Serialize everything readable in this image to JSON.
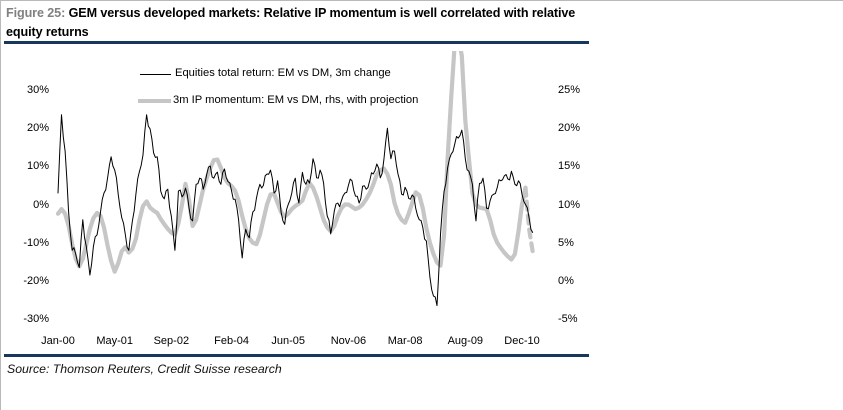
{
  "figure": {
    "label": "Figure 25:",
    "title": " GEM versus developed markets: Relative IP momentum is well correlated with relative equity returns",
    "source": "Source: Thomson Reuters, Credit Suisse research"
  },
  "legend": {
    "items": [
      {
        "label": "Equities total return: EM vs DM, 3m change",
        "swatch": "thin-black-line"
      },
      {
        "label": "3m IP momentum: EM vs DM, rhs, with projection",
        "swatch": "thick-gray-line"
      }
    ]
  },
  "colors": {
    "rule_navy": "#17375E",
    "equities_line": "#000000",
    "ip_momentum_line": "#C6C6C6",
    "figure_label_gray": "#808080"
  },
  "chart_data": {
    "type": "line",
    "title": "",
    "xlabel": "",
    "ylabel_left": "Equities total return EM vs DM, 3m change (%)",
    "ylabel_right": "3m IP momentum EM vs DM (%)",
    "grid": false,
    "legend_position": "top-left-inside",
    "x_unit": "month",
    "months_start": "Jan-00",
    "x_tick_labels": [
      "Jan-00",
      "May-01",
      "Sep-02",
      "Feb-04",
      "Jun-05",
      "Nov-06",
      "Mar-08",
      "Aug-09",
      "Dec-10"
    ],
    "x_tick_month_index": [
      0,
      16,
      32,
      49,
      65,
      82,
      98,
      115,
      131
    ],
    "left_axis": {
      "ticks": [
        30,
        20,
        10,
        0,
        -10,
        -20,
        -30
      ],
      "range": [
        -30,
        30
      ],
      "format": "percent"
    },
    "right_axis": {
      "ticks": [
        25,
        20,
        15,
        10,
        5,
        0,
        -5
      ],
      "range": [
        -5,
        25
      ],
      "format": "percent"
    },
    "series": [
      {
        "name": "Equities total return: EM vs DM, 3m change",
        "axis": "left",
        "color": "#000000",
        "width": 1,
        "noise_amplitude": 1.1,
        "values": [
          3,
          23.5,
          14,
          -2,
          -12,
          -13,
          -16.5,
          -4,
          -11,
          -18.5,
          -11,
          -8,
          -2,
          3,
          7,
          12.5,
          9,
          2.7,
          -3.5,
          -7.8,
          -12,
          -4.3,
          2.7,
          8.7,
          13,
          23.5,
          19.8,
          13.5,
          12.5,
          3.5,
          1.5,
          4,
          -3,
          -12,
          3.5,
          2,
          4.3,
          -1,
          -4.3,
          5.3,
          6.9,
          4,
          8,
          10.1,
          6.9,
          8.5,
          5.3,
          9.3,
          6,
          3.5,
          1.4,
          -4,
          -14,
          -6.5,
          -8.7,
          -2,
          1.6,
          5.3,
          5,
          8,
          9,
          3,
          6.2,
          -2,
          -5.2,
          0,
          3,
          6.9,
          0.4,
          8.4,
          5.3,
          5.6,
          12,
          7,
          9,
          5.6,
          -3,
          -7.7,
          -1.7,
          0.4,
          1,
          3,
          5,
          6.2,
          2.2,
          0.4,
          4.8,
          4,
          6.2,
          8,
          10.6,
          7,
          11.8,
          20,
          12,
          14,
          8,
          2.7,
          4.5,
          1.6,
          2.5,
          -1,
          -4,
          -6,
          -9.6,
          -19,
          -24,
          -26.5,
          -7.8,
          3.5,
          9.6,
          13.2,
          15.8,
          17.4,
          19.5,
          12,
          8.7,
          5.3,
          -4.3,
          5.5,
          6.9,
          -1,
          1,
          2.7,
          4.4,
          6.2,
          7.5,
          6.7,
          8.7,
          5.3,
          6.2,
          2.7,
          0,
          -3.5,
          -7.3
        ]
      },
      {
        "name": "3m IP momentum: EM vs DM, rhs, with projection",
        "axis": "right",
        "color": "#C6C6C6",
        "width": 4.2,
        "values": [
          8.8,
          9.4,
          8.8,
          7.2,
          4.8,
          2.9,
          1.9,
          2.9,
          4.8,
          6.8,
          8.2,
          8.9,
          8.5,
          7.0,
          4.6,
          2.6,
          1.2,
          2.3,
          3.9,
          4.4,
          3.7,
          4.2,
          5.5,
          8.0,
          9.8,
          10.4,
          9.6,
          9.2,
          8.9,
          8.1,
          7.4,
          6.8,
          6.3,
          6.1,
          7.5,
          10.0,
          12.7,
          10.5,
          7.2,
          8.0,
          10.0,
          12.0,
          13.5,
          14.8,
          15.8,
          15.9,
          14.8,
          13.5,
          12.8,
          12.4,
          11.8,
          10.5,
          8.5,
          6.8,
          5.6,
          5.0,
          4.8,
          6.0,
          8.0,
          10.0,
          11.3,
          11.4,
          10.2,
          9.0,
          8.4,
          8.8,
          9.4,
          9.8,
          10.1,
          10.5,
          11.8,
          12.8,
          12.2,
          11.0,
          9.5,
          8.0,
          7.0,
          6.5,
          7.2,
          8.5,
          9.5,
          10.0,
          10.0,
          9.7,
          9.4,
          9.6,
          10.0,
          10.7,
          11.5,
          12.6,
          13.9,
          14.5,
          14.7,
          14.0,
          12.6,
          10.2,
          8.8,
          8.0,
          7.6,
          8.8,
          10.2,
          11.6,
          11.2,
          9.5,
          6.9,
          5.0,
          3.5,
          2.4,
          2.0,
          6.0,
          16.0,
          24.0,
          31.0,
          32.0,
          29.5,
          21.0,
          16.0,
          11.5,
          10.0,
          9.6,
          9.5,
          9.4,
          8.0,
          6.1,
          5.0,
          4.3,
          3.7,
          3.2,
          2.8,
          3.5,
          6.5,
          10.0,
          12.2
        ],
        "projection_month_start": 132,
        "projection_values": [
          12.2,
          6.8,
          3.9
        ]
      }
    ]
  }
}
